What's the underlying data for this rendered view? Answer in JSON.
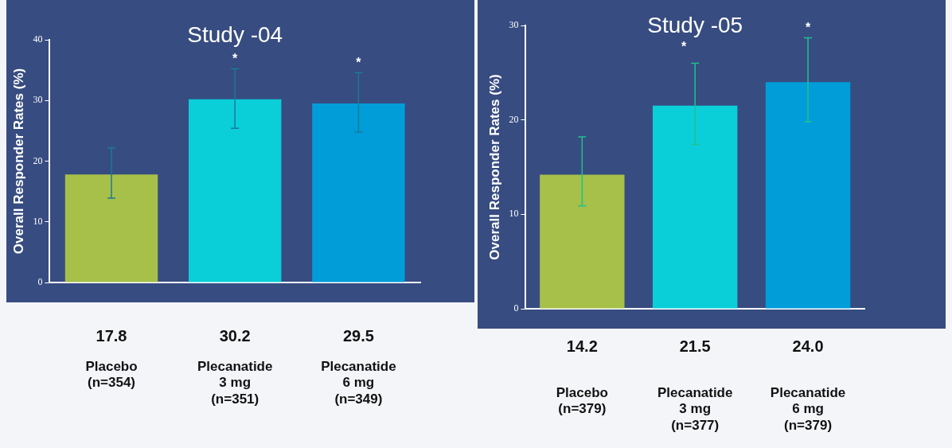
{
  "chart_data": [
    {
      "type": "bar",
      "title": "Study -04",
      "ylabel": "Overall Responder Rates (%)",
      "categories": [
        "Placebo\n(n=354)",
        "Plecanatide\n3 mg\n(n=351)",
        "Plecanatide\n6 mg\n(n=349)"
      ],
      "values": [
        17.8,
        30.2,
        29.5
      ],
      "value_labels": [
        "17.8",
        "30.2",
        "29.5"
      ],
      "colors": [
        "#a6c04a",
        "#0bcfd8",
        "#009dd9"
      ],
      "errors": [
        [
          13.9,
          22.2
        ],
        [
          25.4,
          35.2
        ],
        [
          24.8,
          34.6
        ]
      ],
      "ylim": [
        0,
        40
      ],
      "yticks": [
        0,
        10,
        20,
        30,
        40
      ],
      "grid": false,
      "legend": false,
      "annotations": [
        "*",
        "*"
      ]
    },
    {
      "type": "bar",
      "title": "Study -05",
      "ylabel": "Overall Responder Rates (%)",
      "categories": [
        "Placebo\n(n=379)",
        "Plecanatide\n3 mg\n(n=377)",
        "Plecanatide\n6 mg\n(n=379)"
      ],
      "values": [
        14.2,
        21.5,
        24.0
      ],
      "value_labels": [
        "14.2",
        "21.5",
        "24.0"
      ],
      "colors": [
        "#a6c04a",
        "#0bcfd8",
        "#009dd9"
      ],
      "errors": [
        [
          10.9,
          18.2
        ],
        [
          17.4,
          26.0
        ],
        [
          19.8,
          28.7
        ]
      ],
      "ylim": [
        0,
        30
      ],
      "yticks": [
        0,
        10,
        20,
        30
      ],
      "grid": false,
      "legend": false,
      "annotations": [
        "*",
        "*"
      ]
    }
  ]
}
